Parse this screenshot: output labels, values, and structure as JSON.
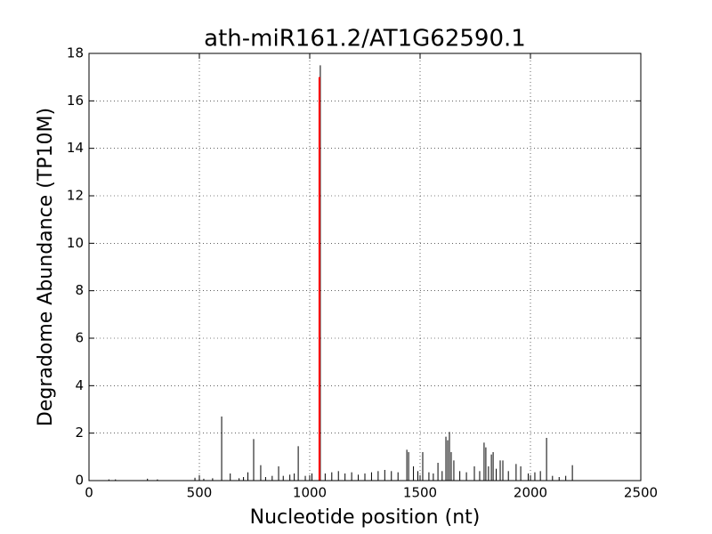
{
  "chart_data": {
    "type": "spike",
    "title": "ath-miR161.2/AT1G62590.1",
    "xlabel": "Nucleotide position (nt)",
    "ylabel": "Degradome Abundance (TP10M)",
    "xlim": [
      0,
      2500
    ],
    "xticks": [
      0,
      500,
      1000,
      1500,
      2000,
      2500
    ],
    "ylim": [
      0,
      18
    ],
    "yticks": [
      0,
      2,
      4,
      6,
      8,
      10,
      12,
      14,
      16,
      18
    ],
    "grid": true,
    "series": [
      {
        "color": "#000000",
        "x": [
          90,
          120,
          265,
          310,
          480,
          500,
          520,
          560,
          601,
          640,
          680,
          700,
          720,
          746,
          778,
          800,
          830,
          859,
          880,
          910,
          930,
          948,
          980,
          1010,
          1048,
          1070,
          1100,
          1130,
          1160,
          1190,
          1220,
          1250,
          1280,
          1310,
          1340,
          1370,
          1400,
          1440,
          1448,
          1470,
          1490,
          1512,
          1540,
          1560,
          1581,
          1600,
          1617,
          1625,
          1633,
          1641,
          1653,
          1680,
          1710,
          1746,
          1770,
          1790,
          1798,
          1810,
          1823,
          1831,
          1845,
          1863,
          1875,
          1900,
          1935,
          1956,
          1990,
          2020,
          2045,
          2073,
          2100,
          2130,
          2160,
          2190
        ],
        "values": [
          0.05,
          0.05,
          0.08,
          0.05,
          0.12,
          0.1,
          0.08,
          0.1,
          2.7,
          0.3,
          0.1,
          0.15,
          0.35,
          1.75,
          0.65,
          0.15,
          0.2,
          0.6,
          0.2,
          0.25,
          0.3,
          1.45,
          0.2,
          0.3,
          17.5,
          0.3,
          0.35,
          0.4,
          0.3,
          0.35,
          0.25,
          0.3,
          0.35,
          0.4,
          0.45,
          0.4,
          0.35,
          1.3,
          1.2,
          0.6,
          0.4,
          1.2,
          0.35,
          0.3,
          0.75,
          0.4,
          1.85,
          1.7,
          2.05,
          1.2,
          0.85,
          0.4,
          0.35,
          0.6,
          0.4,
          1.6,
          1.4,
          0.6,
          1.1,
          1.2,
          0.5,
          0.85,
          0.85,
          0.4,
          0.7,
          0.6,
          0.3,
          0.35,
          0.4,
          1.8,
          0.2,
          0.15,
          0.2,
          0.65
        ]
      },
      {
        "color": "#ff0000",
        "x": [
          1044
        ],
        "values": [
          17
        ]
      }
    ]
  }
}
